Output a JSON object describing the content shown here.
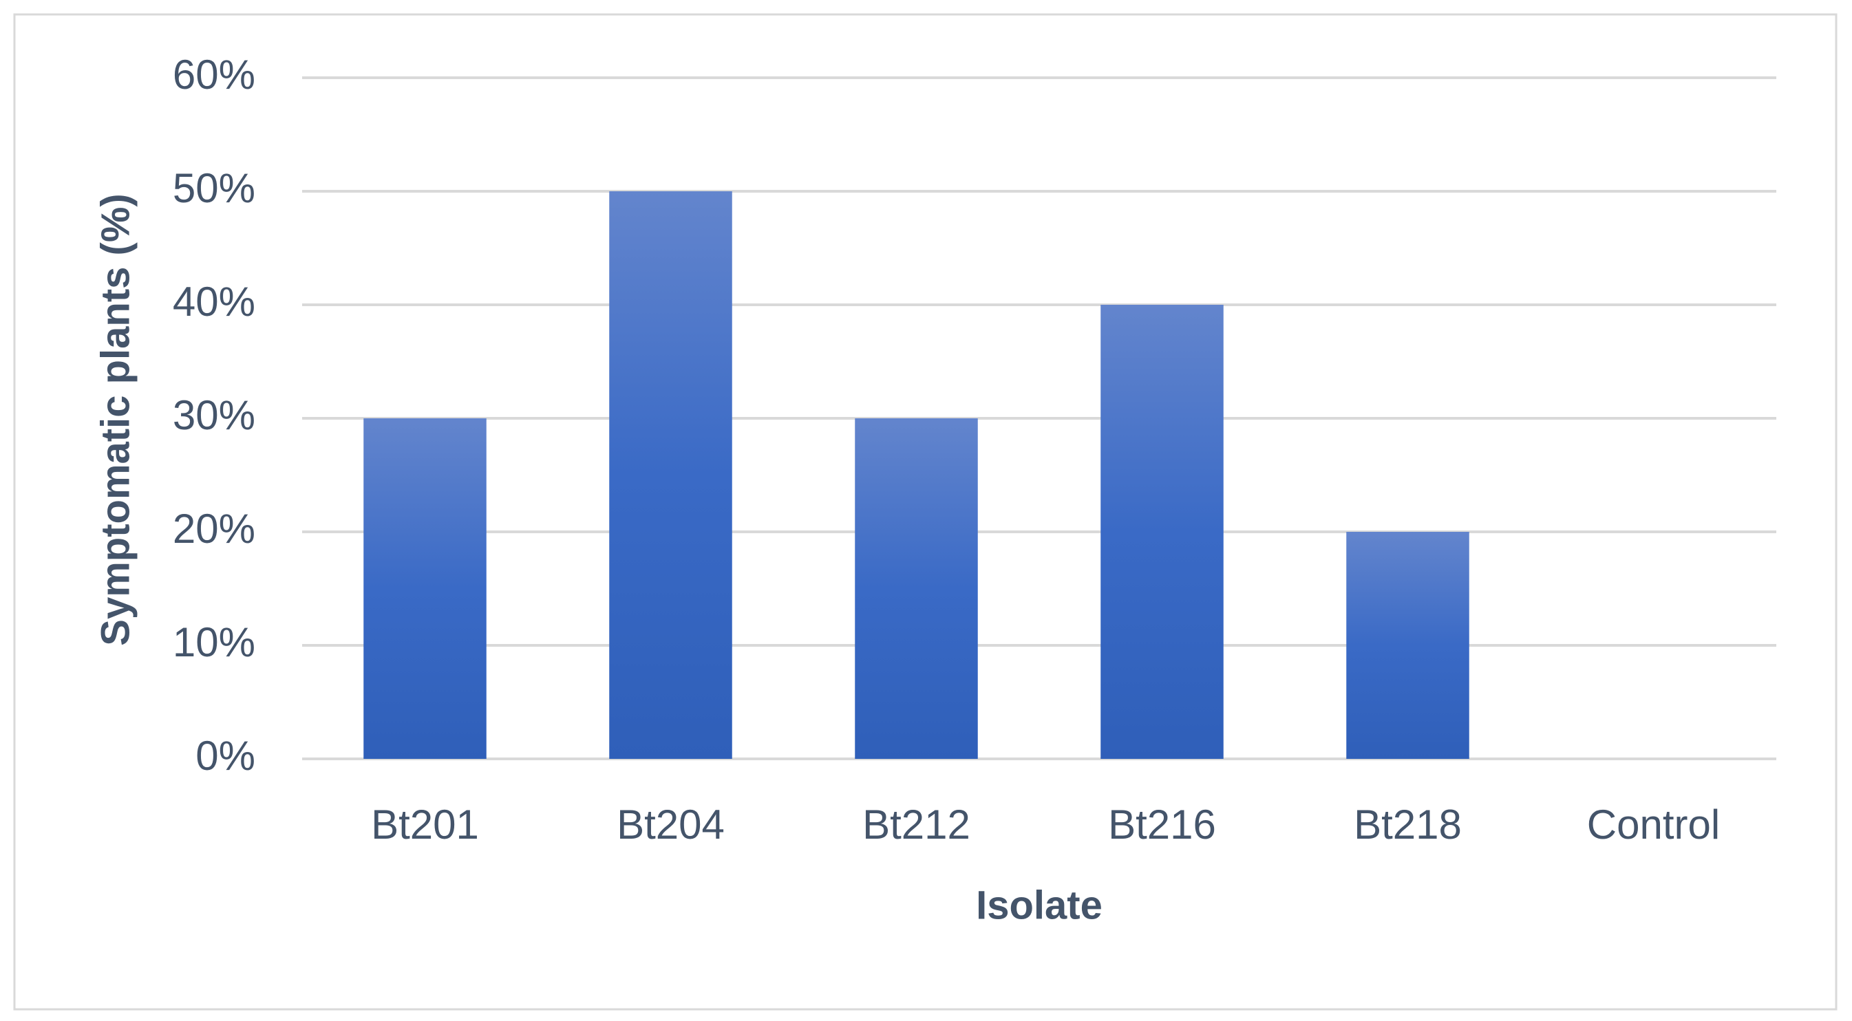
{
  "chart_data": {
    "type": "bar",
    "x_label": "Isolate",
    "y_label": "Symptomatic plants (%)",
    "categories": [
      "Bt201",
      "Bt204",
      "Bt212",
      "Bt216",
      "Bt218",
      "Control"
    ],
    "values": [
      30,
      50,
      30,
      40,
      20,
      0
    ],
    "color": "#3a68c4",
    "ylim": [
      0,
      60
    ],
    "yticks": [
      {
        "value": 0,
        "label": "0%"
      },
      {
        "value": 10,
        "label": "10%"
      },
      {
        "value": 20,
        "label": "20%"
      },
      {
        "value": 30,
        "label": "30%"
      },
      {
        "value": 40,
        "label": "40%"
      },
      {
        "value": 50,
        "label": "50%"
      },
      {
        "value": 60,
        "label": "60%"
      }
    ],
    "grid": true
  }
}
